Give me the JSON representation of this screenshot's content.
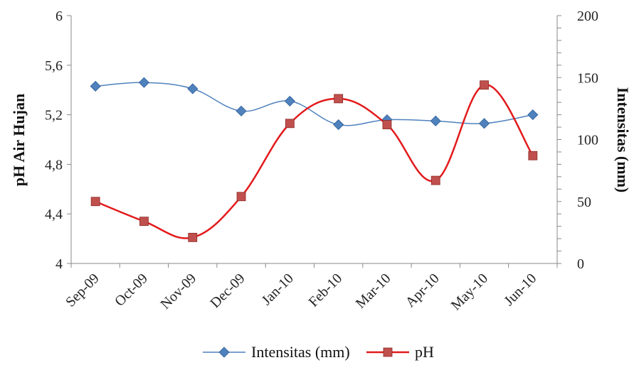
{
  "chart_data": {
    "type": "line",
    "categories": [
      "Sep-09",
      "Oct-09",
      "Nov-09",
      "Dec-09",
      "Jan-10",
      "Feb-10",
      "Mar-10",
      "Apr-10",
      "May-10",
      "Jun-10"
    ],
    "title": "",
    "y_left": {
      "label": "pH Air Hujan",
      "range": [
        4,
        6
      ],
      "ticks": [
        "4",
        "4,4",
        "4,8",
        "5,2",
        "5,6",
        "6"
      ],
      "tick_values": [
        4,
        4.4,
        4.8,
        5.2,
        5.6,
        6
      ]
    },
    "y_right": {
      "label": "Intensitas (mm)",
      "range": [
        0,
        200
      ],
      "ticks": [
        "0",
        "50",
        "100",
        "150",
        "200"
      ],
      "tick_values": [
        0,
        50,
        100,
        150,
        200
      ]
    },
    "series": [
      {
        "name": "Intensitas (mm)",
        "axis": "right",
        "color": "#4f81bd",
        "marker": "diamond",
        "values": [
          143,
          146,
          141,
          123,
          131,
          112,
          116,
          115,
          113,
          120
        ]
      },
      {
        "name": "pH",
        "axis": "left",
        "color": "#e31a1c",
        "marker": "square",
        "values": [
          4.5,
          4.34,
          4.21,
          4.54,
          5.13,
          5.33,
          5.12,
          4.67,
          5.44,
          4.87
        ]
      }
    ],
    "grid": false,
    "legend_position": "bottom"
  }
}
